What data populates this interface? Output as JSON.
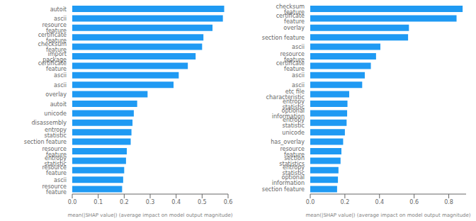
{
  "chart_data": [
    {
      "type": "bar",
      "orientation": "horizontal",
      "color": "#1f9af3",
      "grid": false,
      "xlabel": "mean(|SHAP value|) (average impact on model output magnitude)",
      "categories": [
        "autoit",
        "ascii",
        "resource feature",
        "certificate feature",
        "checksum feature",
        "import package",
        "certificate feature",
        "ascii",
        "ascii",
        "overlay",
        "autoit",
        "unicode",
        "disassembly",
        "entropy statistic",
        "section feature",
        "resource feature",
        "entropy statistic",
        "resource feature",
        "ascii",
        "resource feature"
      ],
      "values": [
        0.585,
        0.58,
        0.54,
        0.505,
        0.5,
        0.475,
        0.445,
        0.41,
        0.39,
        0.29,
        0.25,
        0.237,
        0.232,
        0.228,
        0.225,
        0.21,
        0.207,
        0.2,
        0.196,
        0.192
      ],
      "xlim": [
        0.0,
        0.6
      ],
      "xticks": [
        {
          "value": 0,
          "label": "0.0"
        },
        0.1,
        0.2,
        0.3,
        0.4,
        0.5,
        0.6
      ]
    },
    {
      "type": "bar",
      "orientation": "horizontal",
      "color": "#1f9af3",
      "grid": false,
      "xlabel": "mean(|SHAP value|) (average impact on model output magnitude)",
      "categories": [
        "checksum feature",
        "certificate feature",
        "overlay",
        "section feature",
        "ascii",
        "resource feature",
        "certificate feature",
        "ascii",
        "ascii",
        "etc file characteristic",
        "entropy statistic",
        "optional information",
        "entropy statistic",
        "unicode",
        "has_overlay",
        "resource feature",
        "section statistics",
        "entropy statistic",
        "optional information",
        "section feature"
      ],
      "values": [
        0.88,
        0.845,
        0.57,
        0.565,
        0.405,
        0.38,
        0.35,
        0.315,
        0.3,
        0.225,
        0.215,
        0.213,
        0.21,
        0.2,
        0.19,
        0.18,
        0.175,
        0.163,
        0.16,
        0.155
      ],
      "xlim": [
        0.0,
        0.9
      ],
      "xticks": [
        {
          "value": 0,
          "label": "0.0"
        },
        0.2,
        0.4,
        0.6,
        0.8
      ]
    }
  ]
}
